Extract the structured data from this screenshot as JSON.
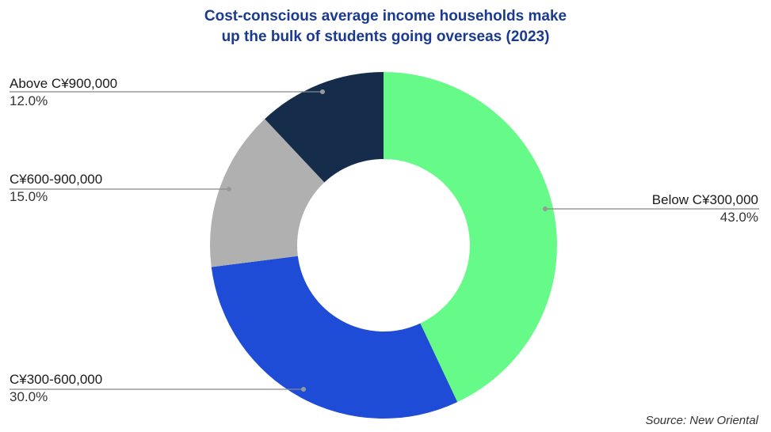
{
  "chart_data": {
    "type": "pie",
    "donut": true,
    "title_lines": [
      "Cost-conscious average income households make",
      "up the bulk of students going overseas (2023)"
    ],
    "slices": [
      {
        "label": "Below C¥300,000",
        "value": 43.0,
        "display": "43.0%",
        "color": "#66fb88"
      },
      {
        "label": "C¥300-600,000",
        "value": 30.0,
        "display": "30.0%",
        "color": "#1f4cd6"
      },
      {
        "label": "C¥600-900,000",
        "value": 15.0,
        "display": "15.0%",
        "color": "#b0b0b0"
      },
      {
        "label": "Above C¥900,000",
        "value": 12.0,
        "display": "12.0%",
        "color": "#152d4b"
      }
    ],
    "source": "Source: New Oriental"
  }
}
